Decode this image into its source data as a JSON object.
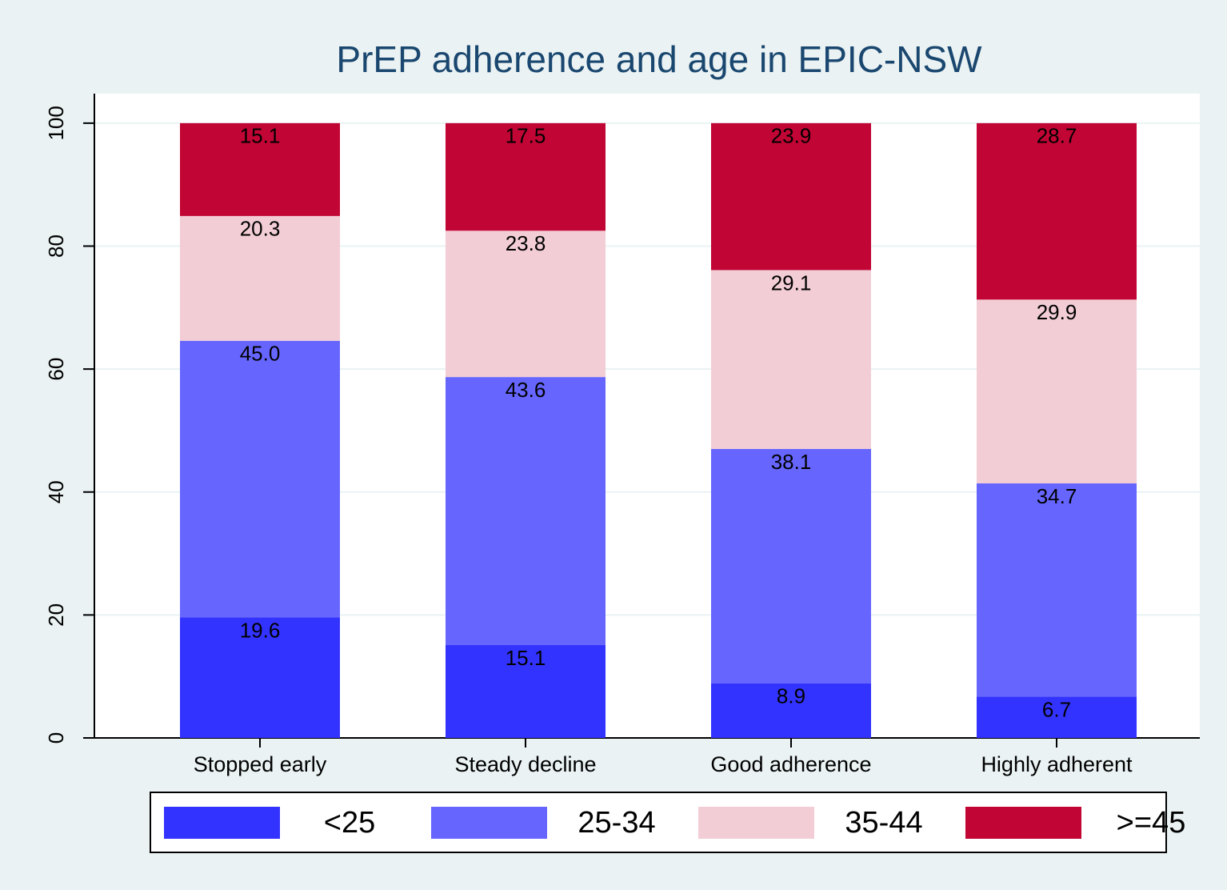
{
  "chart_data": {
    "type": "stacked_bar",
    "title": "PrEP adherence and age in EPIC-NSW",
    "categories": [
      "Stopped early",
      "Steady decline",
      "Good adherence",
      "Highly adherent"
    ],
    "series": [
      {
        "name": "<25",
        "color": "#3333ff",
        "values": [
          19.6,
          15.1,
          8.9,
          6.7
        ],
        "value_labels": [
          "19.6",
          "15.1",
          "8.9",
          "6.7"
        ]
      },
      {
        "name": "25-34",
        "color": "#6666ff",
        "values": [
          45.0,
          43.6,
          38.1,
          34.7
        ],
        "value_labels": [
          "45.0",
          "43.6",
          "38.1",
          "34.7"
        ]
      },
      {
        "name": "35-44",
        "color": "#f2cdd5",
        "values": [
          20.3,
          23.8,
          29.1,
          29.9
        ],
        "value_labels": [
          "20.3",
          "23.8",
          "29.1",
          "29.9"
        ]
      },
      {
        "name": ">=45",
        "color": "#c10534",
        "values": [
          15.1,
          17.5,
          23.9,
          28.7
        ],
        "value_labels": [
          "15.1",
          "17.5",
          "23.9",
          "28.7"
        ]
      }
    ],
    "ylim": [
      0,
      104.8
    ],
    "yticks": [
      0,
      20,
      40,
      60,
      80,
      100
    ],
    "grid": true,
    "legend": "bottom"
  }
}
